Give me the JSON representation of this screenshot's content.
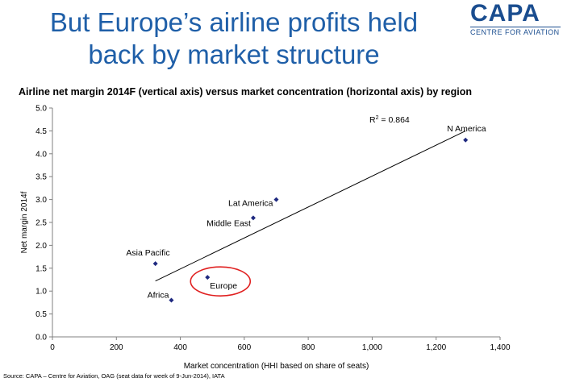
{
  "slide": {
    "title_line1": "But Europe’s airline profits held",
    "title_line2": "back by market structure",
    "source": "Source: CAPA – Centre for Aviation, OAG (seat data for week of 9-Jun-2014), IATA"
  },
  "logo": {
    "name": "CAPA",
    "tagline": "CENTRE FOR AVIATION"
  },
  "colors": {
    "title": "#1f5fa8",
    "points": "#1f2a80",
    "highlight": "#e02020"
  },
  "chart_data": {
    "type": "scatter",
    "title": "Airline net margin 2014F (vertical axis) versus market concentration (horizontal axis) by region",
    "xlabel": "Market concentration (HHI based on share of seats)",
    "ylabel": "Net margin 2014f",
    "xlim": [
      0,
      1400
    ],
    "ylim": [
      0,
      5
    ],
    "xticks": [
      0,
      200,
      400,
      600,
      800,
      1000,
      1200,
      1400
    ],
    "xtick_labels": [
      "0",
      "200",
      "400",
      "600",
      "800",
      "1,000",
      "1,200",
      "1,400"
    ],
    "yticks": [
      0,
      0.5,
      1,
      1.5,
      2,
      2.5,
      3,
      3.5,
      4,
      4.5,
      5
    ],
    "ytick_labels": [
      "0.0",
      "0.5",
      "1.0",
      "1.5",
      "2.0",
      "2.5",
      "3.0",
      "3.5",
      "4.0",
      "4.5",
      "5.0"
    ],
    "grid": false,
    "points": [
      {
        "label": "N America",
        "x": 1292,
        "y": 4.3
      },
      {
        "label": "Lat America",
        "x": 700,
        "y": 3.0
      },
      {
        "label": "Middle East",
        "x": 628,
        "y": 2.6
      },
      {
        "label": "Asia Pacific",
        "x": 322,
        "y": 1.6
      },
      {
        "label": "Europe",
        "x": 485,
        "y": 1.3
      },
      {
        "label": "Africa",
        "x": 372,
        "y": 0.8
      }
    ],
    "trendline": {
      "r2_label": "R",
      "r2_sup": "2",
      "r2_value": " = 0.864",
      "start": {
        "x": 322,
        "y": 1.22
      },
      "end": {
        "x": 1292,
        "y": 4.5
      }
    },
    "highlight": "Europe"
  }
}
